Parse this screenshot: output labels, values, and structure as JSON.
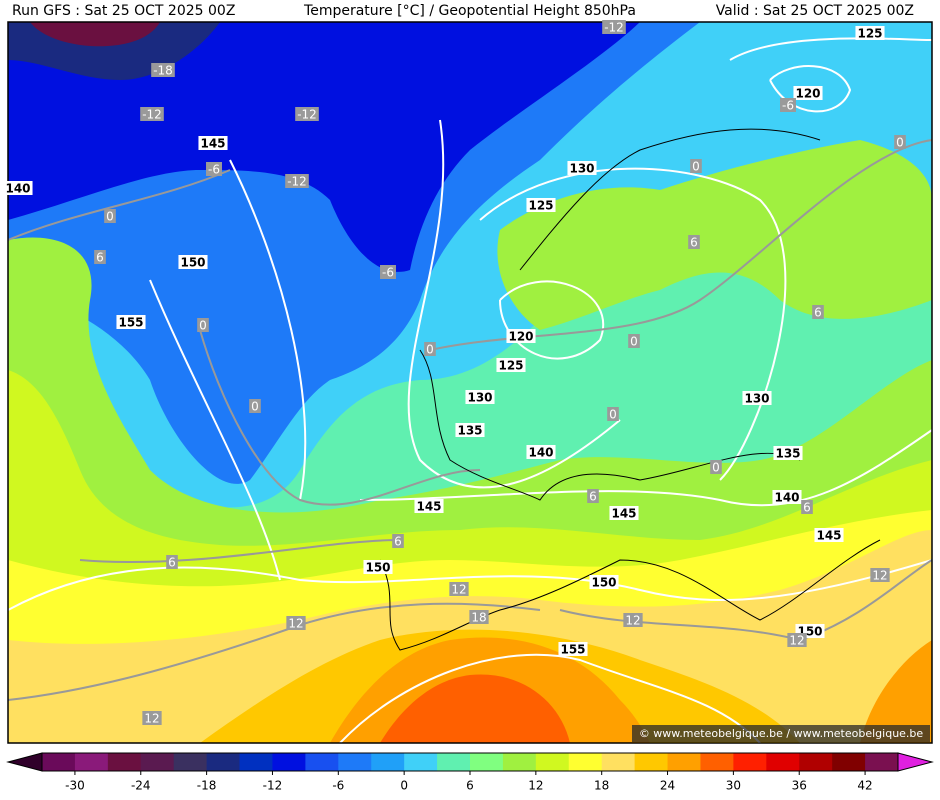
{
  "header": {
    "left": "Run GFS : Sat 25 OCT 2025 00Z",
    "center": "Temperature [°C] / Geopotential Height 850hPa",
    "right": "Valid : Sat 25 OCT 2025 00Z"
  },
  "watermark": "© www.meteobelgique.be / www.meteobelgique.be",
  "height_labels": [
    125,
    120,
    145,
    140,
    130,
    125,
    150,
    155,
    120,
    125,
    130,
    135,
    130,
    140,
    135,
    140,
    145,
    145,
    145,
    150,
    150,
    150,
    155
  ],
  "temperature_labels": [
    -12,
    -18,
    -12,
    -12,
    -6,
    -12,
    -6,
    0,
    0,
    0,
    6,
    6,
    0,
    -6,
    0,
    0,
    6,
    0,
    0,
    0,
    6,
    6,
    6,
    6,
    12,
    18,
    12,
    12,
    12,
    12,
    12
  ],
  "colorbar": {
    "lim": [
      -33,
      45
    ],
    "ticks": [
      -30,
      -24,
      -18,
      -12,
      -6,
      0,
      6,
      12,
      18,
      24,
      30,
      36,
      42
    ],
    "colors": [
      "#6a0a5a",
      "#8a1a7a",
      "#6a1040",
      "#5a1a50",
      "#3a3060",
      "#1a2a80",
      "#0030c0",
      "#0010e0",
      "#1850f0",
      "#1e7af8",
      "#20a0f8",
      "#40d0f8",
      "#60f0b0",
      "#80ff80",
      "#a0f040",
      "#d0f820",
      "#ffff30",
      "#ffe060",
      "#ffc800",
      "#ffa000",
      "#ff6000",
      "#ff2000",
      "#e00000",
      "#b00000",
      "#800000",
      "#7a1050"
    ],
    "low_color": "#30002a",
    "high_color": "#e020e0"
  }
}
